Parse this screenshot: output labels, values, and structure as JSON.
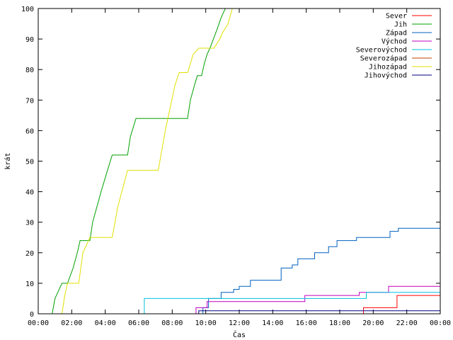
{
  "chart_data": {
    "type": "line",
    "title": "",
    "xlabel": "Čas",
    "ylabel": "krát",
    "xlim": [
      "00:00",
      "24:00"
    ],
    "ylim": [
      0,
      100
    ],
    "grid": false,
    "legend_position": "top-right",
    "x_ticks": [
      "00:00",
      "02:00",
      "04:00",
      "06:00",
      "08:00",
      "10:00",
      "12:00",
      "14:00",
      "16:00",
      "18:00",
      "20:00",
      "22:00",
      "00:00"
    ],
    "y_ticks": [
      0,
      10,
      20,
      30,
      40,
      50,
      60,
      70,
      80,
      90,
      100
    ],
    "series": [
      {
        "name": "Sever",
        "color": "#ff0000",
        "step": true,
        "points": [
          [
            "19:25",
            0
          ],
          [
            "19:25",
            2
          ],
          [
            "21:25",
            2
          ],
          [
            "21:25",
            6
          ],
          [
            "24:00",
            6
          ]
        ]
      },
      {
        "name": "Jih",
        "color": "#00a000",
        "step": false,
        "points": [
          [
            "00:50",
            0
          ],
          [
            "01:00",
            5
          ],
          [
            "01:10",
            7
          ],
          [
            "01:25",
            10
          ],
          [
            "01:45",
            10
          ],
          [
            "02:05",
            15
          ],
          [
            "02:20",
            20
          ],
          [
            "02:30",
            24
          ],
          [
            "03:05",
            24
          ],
          [
            "03:15",
            30
          ],
          [
            "03:45",
            40
          ],
          [
            "04:05",
            46
          ],
          [
            "04:25",
            52
          ],
          [
            "05:20",
            52
          ],
          [
            "05:30",
            58
          ],
          [
            "05:50",
            64
          ],
          [
            "08:55",
            64
          ],
          [
            "09:05",
            70
          ],
          [
            "09:20",
            75
          ],
          [
            "09:30",
            78
          ],
          [
            "09:45",
            78
          ],
          [
            "09:55",
            82
          ],
          [
            "10:05",
            85
          ],
          [
            "10:15",
            87
          ],
          [
            "10:40",
            93
          ],
          [
            "10:55",
            97
          ],
          [
            "11:10",
            100
          ]
        ]
      },
      {
        "name": "Západ",
        "color": "#0060c0",
        "step": true,
        "points": [
          [
            "09:50",
            0
          ],
          [
            "09:50",
            2
          ],
          [
            "10:10",
            2
          ],
          [
            "10:10",
            5
          ],
          [
            "10:55",
            5
          ],
          [
            "10:55",
            7
          ],
          [
            "11:40",
            7
          ],
          [
            "11:40",
            8
          ],
          [
            "12:00",
            8
          ],
          [
            "12:00",
            9
          ],
          [
            "12:40",
            9
          ],
          [
            "12:40",
            11
          ],
          [
            "14:30",
            11
          ],
          [
            "14:30",
            15
          ],
          [
            "15:10",
            15
          ],
          [
            "15:10",
            16
          ],
          [
            "15:30",
            16
          ],
          [
            "15:30",
            18
          ],
          [
            "16:30",
            18
          ],
          [
            "16:30",
            20
          ],
          [
            "17:20",
            20
          ],
          [
            "17:20",
            22
          ],
          [
            "17:50",
            22
          ],
          [
            "17:50",
            24
          ],
          [
            "19:00",
            24
          ],
          [
            "19:00",
            25
          ],
          [
            "21:00",
            25
          ],
          [
            "21:00",
            27
          ],
          [
            "21:30",
            27
          ],
          [
            "21:30",
            28
          ],
          [
            "24:00",
            28
          ]
        ]
      },
      {
        "name": "Východ",
        "color": "#c000c0",
        "step": true,
        "points": [
          [
            "09:25",
            0
          ],
          [
            "09:25",
            2
          ],
          [
            "10:05",
            2
          ],
          [
            "10:05",
            4
          ],
          [
            "15:55",
            4
          ],
          [
            "15:55",
            6
          ],
          [
            "19:10",
            6
          ],
          [
            "19:10",
            7
          ],
          [
            "20:55",
            7
          ],
          [
            "20:55",
            9
          ],
          [
            "24:00",
            9
          ]
        ]
      },
      {
        "name": "Severovýchod",
        "color": "#00c0e0",
        "step": true,
        "points": [
          [
            "06:20",
            0
          ],
          [
            "06:20",
            5
          ],
          [
            "19:35",
            5
          ],
          [
            "19:35",
            7
          ],
          [
            "24:00",
            7
          ]
        ]
      },
      {
        "name": "Severozápad",
        "color": "#c04000",
        "step": true,
        "points": []
      },
      {
        "name": "Jihozápad",
        "color": "#e0e000",
        "step": false,
        "points": [
          [
            "01:25",
            0
          ],
          [
            "01:35",
            6
          ],
          [
            "01:45",
            10
          ],
          [
            "02:25",
            10
          ],
          [
            "02:40",
            20
          ],
          [
            "03:05",
            25
          ],
          [
            "04:25",
            25
          ],
          [
            "04:45",
            35
          ],
          [
            "05:20",
            47
          ],
          [
            "07:10",
            47
          ],
          [
            "07:35",
            60
          ],
          [
            "08:10",
            75
          ],
          [
            "08:25",
            79
          ],
          [
            "08:55",
            79
          ],
          [
            "09:05",
            82
          ],
          [
            "09:15",
            85
          ],
          [
            "09:35",
            87
          ],
          [
            "10:30",
            87
          ],
          [
            "10:50",
            90
          ],
          [
            "11:00",
            92
          ],
          [
            "11:20",
            95
          ],
          [
            "11:35",
            100
          ]
        ]
      },
      {
        "name": "Jihovýchod",
        "color": "#000080",
        "step": true,
        "points": [
          [
            "09:35",
            0
          ],
          [
            "09:35",
            1
          ],
          [
            "24:00",
            1
          ]
        ]
      }
    ]
  }
}
